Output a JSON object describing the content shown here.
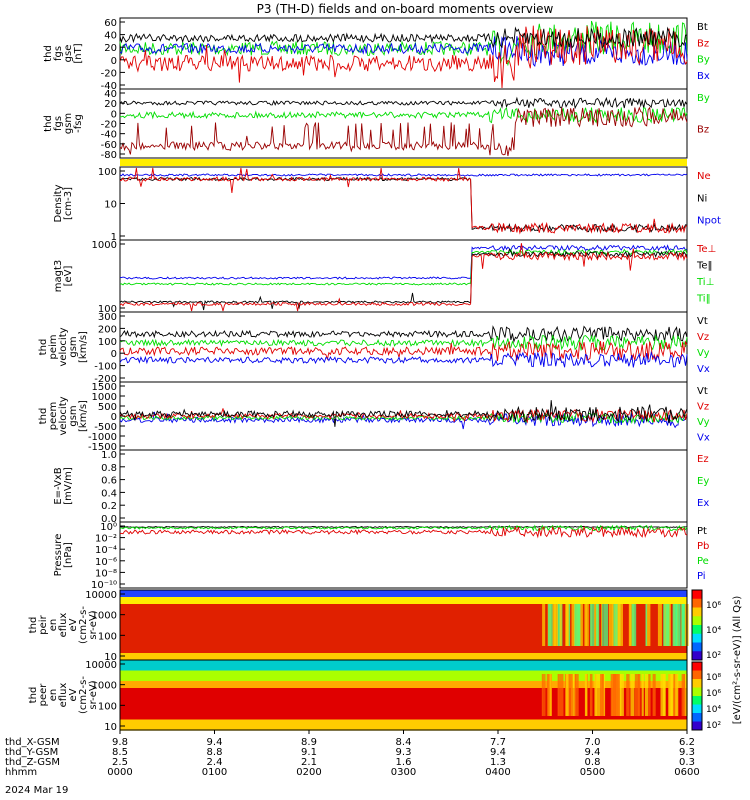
{
  "title": "P3 (TH-D) fields and on-board moments overview",
  "date_label": "2024 Mar 19",
  "colors": {
    "black": "#000000",
    "red": "#e00000",
    "green": "#00dd00",
    "blue": "#0000ee",
    "darkred": "#990000",
    "yellow": "#ffee00"
  },
  "chart_data": [
    {
      "type": "line",
      "ylabel": [
        "thd",
        "fgs",
        "gse",
        "[nT]"
      ],
      "ylim": [
        -45,
        65
      ],
      "yticks": [
        60,
        40,
        20,
        0,
        -20,
        -40
      ],
      "legend": [
        {
          "name": "Bt",
          "color": "black"
        },
        {
          "name": "Bz",
          "color": "red"
        },
        {
          "name": "By",
          "color": "green"
        },
        {
          "name": "Bx",
          "color": "blue"
        }
      ]
    },
    {
      "type": "line",
      "ylabel": [
        "thd",
        "fgs",
        "gsm",
        "-fsg"
      ],
      "ylim": [
        -95,
        45
      ],
      "yticks": [
        40,
        20,
        0,
        -20,
        -40,
        -60,
        -80
      ],
      "legend": [
        {
          "name": "By",
          "color": "green"
        },
        {
          "name": "Bz",
          "color": "darkred"
        }
      ]
    },
    {
      "type": "line",
      "ylabel": [
        "Density",
        "[cm-3]"
      ],
      "log": true,
      "ylim": [
        0.5,
        130
      ],
      "yticks": [
        "100",
        "10",
        "1"
      ],
      "legend": [
        {
          "name": "Ne",
          "color": "red"
        },
        {
          "name": "Ni",
          "color": "black"
        },
        {
          "name": "Npot",
          "color": "blue"
        }
      ]
    },
    {
      "type": "line",
      "ylabel": [
        "magt3",
        "[eV]"
      ],
      "log": true,
      "ylim": [
        30,
        4000
      ],
      "yticks": [
        "1000",
        "100"
      ],
      "legend": [
        {
          "name": "Te⊥",
          "color": "red"
        },
        {
          "name": "Te‖",
          "color": "black"
        },
        {
          "name": "Ti⊥",
          "color": "green"
        },
        {
          "name": "Ti‖",
          "color": "green"
        }
      ]
    },
    {
      "type": "line",
      "ylabel": [
        "thd",
        "peim",
        "velocity",
        "gsm",
        "[km/s]"
      ],
      "ylim": [
        -260,
        330
      ],
      "yticks": [
        300,
        200,
        100,
        0,
        -100,
        -200
      ],
      "legend": [
        {
          "name": "Vt",
          "color": "black"
        },
        {
          "name": "Vz",
          "color": "red"
        },
        {
          "name": "Vy",
          "color": "green"
        },
        {
          "name": "Vx",
          "color": "blue"
        }
      ]
    },
    {
      "type": "line",
      "ylabel": [
        "thd",
        "peem",
        "velocity",
        "gsm",
        "[km/s]"
      ],
      "ylim": [
        -1500,
        1500
      ],
      "yticks": [
        1500,
        1000,
        500,
        0,
        -500,
        -1000,
        -1500
      ],
      "legend": [
        {
          "name": "Vt",
          "color": "black"
        },
        {
          "name": "Vz",
          "color": "red"
        },
        {
          "name": "Vy",
          "color": "green"
        },
        {
          "name": "Vx",
          "color": "blue"
        }
      ]
    },
    {
      "type": "line",
      "ylabel": [
        "E=-VxB",
        "[mV/m]"
      ],
      "ylim": [
        0,
        1
      ],
      "yticks": [
        "1.0",
        "0.8",
        "0.6",
        "0.4",
        "0.2",
        "0.0"
      ],
      "legend": [
        {
          "name": "Ez",
          "color": "red"
        },
        {
          "name": "Ey",
          "color": "green"
        },
        {
          "name": "Ex",
          "color": "blue"
        }
      ]
    },
    {
      "type": "line",
      "ylabel": [
        "Pressure",
        "[nPa]"
      ],
      "log": true,
      "ylim": [
        1e-11,
        1
      ],
      "yticks": [
        "10⁰",
        "10⁻²",
        "10⁻⁴",
        "10⁻⁶",
        "10⁻⁸",
        "10⁻¹⁰"
      ],
      "legend": [
        {
          "name": "Pt",
          "color": "black"
        },
        {
          "name": "Pb",
          "color": "red"
        },
        {
          "name": "Pe",
          "color": "green"
        },
        {
          "name": "Pi",
          "color": "blue"
        }
      ]
    },
    {
      "type": "heatmap",
      "ylabel": [
        "thd",
        "peir",
        "en",
        "eflux",
        "eV",
        "(cm2-s-",
        "sr-eV)"
      ],
      "yticks": [
        "10000",
        "1000",
        "100",
        "10"
      ]
    },
    {
      "type": "heatmap",
      "ylabel": [
        "thd",
        "peer",
        "en",
        "eflux",
        "eV",
        "(cm2-s-",
        "sr-eV)"
      ],
      "yticks": [
        "10000",
        "1000",
        "100",
        "10"
      ]
    }
  ],
  "colorbar": {
    "label": "[eV/(cm²-s-sr-eV)] (All Qs)",
    "ticks_top": [
      "10⁶",
      "10⁴",
      "10²"
    ],
    "ticks_bottom": [
      "10⁸",
      "10⁶",
      "10⁴",
      "10²"
    ]
  },
  "xaxis": {
    "rows": [
      {
        "label": "thd_X-GSM",
        "values": [
          "9.8",
          "9.4",
          "8.9",
          "8.4",
          "7.7",
          "7.0",
          "6.2"
        ]
      },
      {
        "label": "thd_Y-GSM",
        "values": [
          "8.5",
          "8.8",
          "9.1",
          "9.3",
          "9.4",
          "9.4",
          "9.3"
        ]
      },
      {
        "label": "thd_Z-GSM",
        "values": [
          "2.5",
          "2.4",
          "2.1",
          "1.6",
          "1.3",
          "0.8",
          "0.3"
        ]
      },
      {
        "label": "hhmm",
        "values": [
          "0000",
          "0100",
          "0200",
          "0300",
          "0400",
          "0500",
          "0600"
        ]
      }
    ]
  }
}
